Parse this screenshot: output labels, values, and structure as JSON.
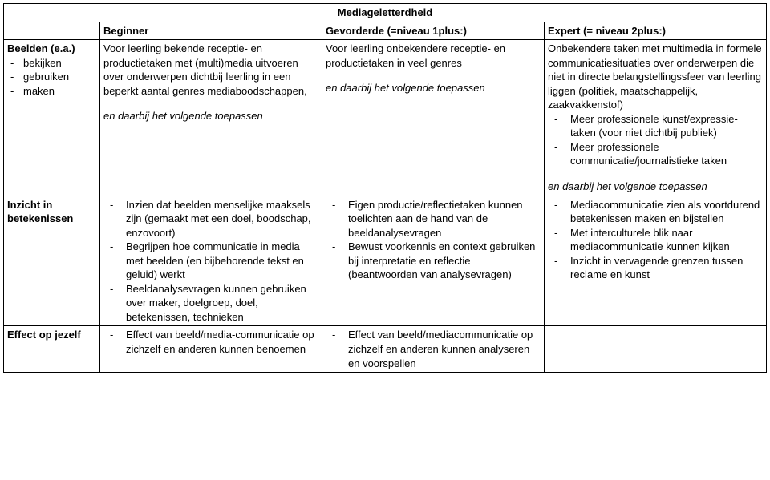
{
  "title": "Mediageletterdheid",
  "headers": {
    "beginner": "Beginner",
    "gevorderde": "Gevorderde (=niveau 1plus:)",
    "expert": "Expert (= niveau 2plus:)"
  },
  "row1": {
    "label_title": "Beelden (e.a.)",
    "label_items": [
      "bekijken",
      "gebruiken",
      "maken"
    ],
    "beginner_p1": "Voor leerling bekende receptie- en productietaken met (multi)media uitvoeren over onderwerpen dichtbij leerling in een beperkt aantal genres mediaboodschappen,",
    "beginner_em": "en daarbij het volgende toepassen",
    "gevorderde_p1": "Voor leerling onbekendere receptie- en productietaken in veel genres",
    "gevorderde_em": "en daarbij het volgende toepassen",
    "expert_p1": "Onbekendere taken met multimedia in formele communicatiesituaties over onderwerpen die niet in directe belangstellingssfeer van leerling liggen (politiek, maatschappelijk, zaakvakkenstof)",
    "expert_li1": "Meer professionele kunst/expressie-taken (voor niet dichtbij publiek)",
    "expert_li2": "Meer professionele communicatie/journalistieke taken",
    "expert_em": "en daarbij het volgende toepassen"
  },
  "row2": {
    "label": "Inzicht in betekenissen",
    "beginner_li1": "Inzien dat beelden menselijke maaksels zijn (gemaakt met een doel, boodschap, enzovoort)",
    "beginner_li2": "Begrijpen hoe communicatie in media met beelden (en bijbehorende tekst en geluid) werkt",
    "beginner_li3": "Beeldanalysevragen kunnen gebruiken over maker, doelgroep, doel, betekenissen, technieken",
    "gevorderde_li1": "Eigen productie/reflectietaken kunnen toelichten aan de hand van de beeldanalysevragen",
    "gevorderde_li2": "Bewust voorkennis en context gebruiken bij interpretatie en reflectie (beantwoorden van analysevragen)",
    "expert_li1": "Mediacommunicatie zien als voortdurend betekenissen maken en bijstellen",
    "expert_li2": "Met interculturele blik naar mediacommunicatie kunnen kijken",
    "expert_li3": "Inzicht in vervagende grenzen tussen reclame en kunst"
  },
  "row3": {
    "label": "Effect op jezelf",
    "beginner_li1": "Effect van beeld/media-communicatie op zichzelf en anderen kunnen benoemen",
    "gevorderde_li1": "Effect van beeld/mediacommunicatie op zichzelf en anderen kunnen analyseren en voorspellen"
  }
}
